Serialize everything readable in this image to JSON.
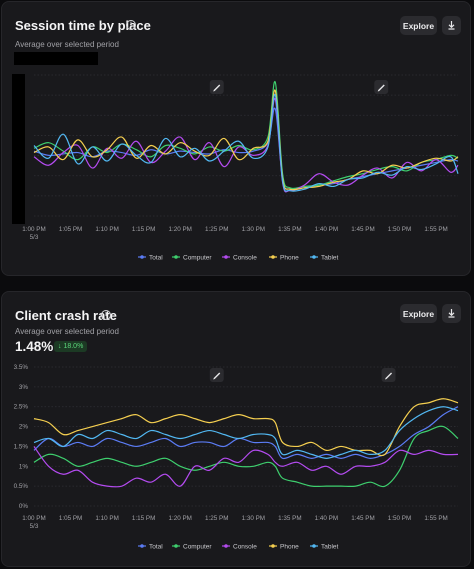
{
  "colors": {
    "Total": "#5b7cf5",
    "Computer": "#3ecf6e",
    "Console": "#b44bf0",
    "Phone": "#f5cf50",
    "Tablet": "#52b8f2"
  },
  "session": {
    "title": "Session time by place",
    "subtitle": "Average over selected period",
    "explore_label": "Explore",
    "info_icon": "info-icon",
    "download_icon": "download-icon",
    "marker_icon": "pencil-icon"
  },
  "crash": {
    "title": "Client crash rate",
    "subtitle": "Average over selected period",
    "value": "1.48%",
    "change": "18.0%",
    "explore_label": "Explore",
    "info_icon": "info-icon",
    "download_icon": "download-icon",
    "marker_icon": "pencil-icon"
  },
  "chart_data": [
    {
      "type": "line",
      "title": "Session time by place",
      "y_ticks_visible": false,
      "x_ticks": [
        "1:00 PM\n5/3",
        "1:05 PM",
        "1:10 PM",
        "1:15 PM",
        "1:20 PM",
        "1:25 PM",
        "1:30 PM",
        "1:35 PM",
        "1:40 PM",
        "1:45 PM",
        "1:50 PM",
        "1:55 PM"
      ],
      "x_minutes": [
        0,
        5,
        10,
        15,
        20,
        25,
        30,
        35,
        40,
        45,
        50,
        55
      ],
      "ylim": [
        0,
        10
      ],
      "grid": true,
      "legend": "bottom",
      "annotations_at_minutes": [
        25,
        47.5
      ],
      "series": [
        {
          "name": "Total",
          "x": [
            0,
            2,
            4,
            6,
            8,
            10,
            12,
            14,
            16,
            18,
            20,
            22,
            24,
            26,
            28,
            30,
            32,
            33,
            34,
            35,
            37,
            39,
            41,
            43,
            45,
            47,
            49,
            51,
            53,
            55,
            57,
            58
          ],
          "y": [
            4.6,
            4.3,
            4.4,
            4.5,
            4.2,
            4.6,
            4.5,
            4.3,
            4.7,
            4.4,
            4.6,
            4.5,
            4.4,
            4.7,
            4.5,
            4.6,
            5.2,
            7.6,
            2.6,
            1.9,
            2.0,
            2.2,
            2.3,
            2.6,
            2.8,
            3.0,
            3.2,
            3.4,
            3.6,
            3.8,
            4.0,
            3.9
          ]
        },
        {
          "name": "Computer",
          "x": [
            0,
            2,
            4,
            6,
            8,
            10,
            12,
            14,
            16,
            18,
            20,
            22,
            24,
            26,
            28,
            30,
            32,
            33,
            34,
            35,
            37,
            39,
            41,
            43,
            45,
            47,
            49,
            51,
            53,
            55,
            57,
            58
          ],
          "y": [
            4.8,
            5.2,
            4.6,
            4.0,
            4.9,
            4.5,
            5.1,
            4.7,
            4.2,
            5.0,
            4.8,
            4.4,
            4.9,
            4.6,
            5.0,
            4.7,
            5.6,
            9.5,
            3.0,
            2.0,
            2.1,
            2.2,
            2.5,
            2.8,
            3.0,
            3.3,
            3.5,
            3.2,
            3.8,
            4.0,
            4.3,
            4.1
          ]
        },
        {
          "name": "Console",
          "x": [
            0,
            2,
            4,
            6,
            8,
            10,
            12,
            14,
            16,
            18,
            20,
            22,
            24,
            26,
            28,
            30,
            32,
            33,
            34,
            35,
            37,
            39,
            41,
            43,
            45,
            47,
            49,
            51,
            53,
            55,
            57,
            58
          ],
          "y": [
            4.2,
            3.6,
            4.5,
            5.0,
            3.4,
            4.8,
            4.1,
            5.3,
            3.8,
            4.6,
            5.6,
            4.0,
            5.2,
            3.5,
            4.9,
            4.3,
            5.0,
            8.3,
            2.4,
            1.8,
            2.2,
            3.0,
            2.4,
            2.2,
            2.9,
            3.4,
            2.7,
            3.8,
            3.2,
            4.0,
            3.1,
            3.6
          ]
        },
        {
          "name": "Phone",
          "x": [
            0,
            2,
            4,
            6,
            8,
            10,
            12,
            14,
            16,
            18,
            20,
            22,
            24,
            26,
            28,
            30,
            32,
            33,
            34,
            35,
            37,
            39,
            41,
            43,
            45,
            47,
            49,
            51,
            53,
            55,
            57,
            58
          ],
          "y": [
            4.5,
            4.9,
            4.0,
            5.4,
            4.2,
            4.7,
            5.6,
            4.1,
            5.0,
            4.4,
            5.2,
            4.6,
            4.3,
            5.5,
            4.0,
            4.8,
            5.3,
            8.9,
            2.7,
            1.9,
            2.0,
            2.1,
            2.4,
            2.6,
            3.2,
            3.0,
            3.6,
            3.4,
            3.8,
            4.1,
            3.9,
            4.2
          ]
        },
        {
          "name": "Tablet",
          "x": [
            0,
            2,
            4,
            6,
            8,
            10,
            12,
            14,
            16,
            18,
            20,
            22,
            24,
            26,
            28,
            30,
            32,
            33,
            34,
            35,
            37,
            39,
            41,
            43,
            45,
            47,
            49,
            51,
            53,
            55,
            57,
            58
          ],
          "y": [
            5.0,
            4.1,
            5.8,
            3.7,
            4.9,
            3.9,
            5.1,
            4.3,
            3.8,
            5.5,
            4.2,
            4.8,
            3.9,
            4.6,
            5.3,
            4.1,
            4.9,
            8.6,
            2.5,
            1.8,
            1.9,
            2.3,
            2.1,
            2.6,
            2.7,
            3.1,
            2.9,
            3.5,
            3.3,
            3.7,
            4.2,
            3.0
          ]
        }
      ]
    },
    {
      "type": "line",
      "title": "Client crash rate",
      "ylabel": "",
      "y_ticks": [
        "0%",
        "0.5%",
        "1%",
        "1.5%",
        "2%",
        "2.5%",
        "3%",
        "3.5%"
      ],
      "ylim": [
        0,
        3.5
      ],
      "x_ticks": [
        "1:00 PM\n5/3",
        "1:05 PM",
        "1:10 PM",
        "1:15 PM",
        "1:20 PM",
        "1:25 PM",
        "1:30 PM",
        "1:35 PM",
        "1:40 PM",
        "1:45 PM",
        "1:50 PM",
        "1:55 PM"
      ],
      "x_minutes": [
        0,
        5,
        10,
        15,
        20,
        25,
        30,
        35,
        40,
        45,
        50,
        55
      ],
      "grid": true,
      "legend": "bottom",
      "annotations_at_minutes": [
        25,
        48.5
      ],
      "series": [
        {
          "name": "Total",
          "x": [
            0,
            2,
            4,
            6,
            8,
            10,
            12,
            14,
            16,
            18,
            20,
            22,
            24,
            26,
            28,
            30,
            32,
            33,
            34,
            36,
            38,
            40,
            42,
            44,
            46,
            48,
            50,
            52,
            54,
            56,
            58
          ],
          "y": [
            1.4,
            1.7,
            1.5,
            1.6,
            1.5,
            1.7,
            1.6,
            1.5,
            1.6,
            1.7,
            1.5,
            1.6,
            1.6,
            1.5,
            1.7,
            1.6,
            1.6,
            1.5,
            1.2,
            1.3,
            1.2,
            1.3,
            1.2,
            1.3,
            1.2,
            1.3,
            1.5,
            1.8,
            2.0,
            2.3,
            2.5
          ]
        },
        {
          "name": "Computer",
          "x": [
            0,
            2,
            4,
            6,
            8,
            10,
            12,
            14,
            16,
            18,
            20,
            22,
            24,
            26,
            28,
            30,
            32,
            33,
            34,
            36,
            38,
            40,
            42,
            44,
            46,
            48,
            50,
            52,
            54,
            56,
            58
          ],
          "y": [
            1.1,
            1.3,
            1.2,
            1.0,
            1.1,
            1.2,
            1.1,
            1.0,
            1.1,
            1.2,
            1.0,
            0.9,
            1.0,
            1.1,
            1.0,
            1.0,
            1.1,
            1.0,
            0.7,
            0.6,
            0.5,
            0.5,
            0.5,
            0.5,
            0.6,
            0.5,
            0.9,
            1.7,
            1.9,
            2.0,
            1.7
          ]
        },
        {
          "name": "Console",
          "x": [
            0,
            2,
            4,
            6,
            8,
            10,
            12,
            14,
            16,
            18,
            20,
            22,
            24,
            26,
            28,
            30,
            32,
            33,
            34,
            36,
            38,
            40,
            42,
            44,
            46,
            48,
            50,
            52,
            54,
            56,
            58
          ],
          "y": [
            1.5,
            1.0,
            0.8,
            0.9,
            0.6,
            0.5,
            0.5,
            0.7,
            0.6,
            0.8,
            0.5,
            1.0,
            0.9,
            1.2,
            1.1,
            1.4,
            1.3,
            1.1,
            1.0,
            1.1,
            0.9,
            1.0,
            0.8,
            1.0,
            1.0,
            1.1,
            1.4,
            1.3,
            1.4,
            1.3,
            1.3
          ]
        },
        {
          "name": "Phone",
          "x": [
            0,
            2,
            4,
            6,
            8,
            10,
            12,
            14,
            16,
            18,
            20,
            22,
            24,
            26,
            28,
            30,
            32,
            33,
            34,
            36,
            38,
            40,
            42,
            44,
            46,
            48,
            50,
            52,
            54,
            56,
            58
          ],
          "y": [
            2.2,
            2.1,
            1.8,
            1.9,
            2.0,
            2.1,
            2.2,
            2.3,
            2.1,
            2.2,
            2.3,
            2.2,
            2.1,
            2.2,
            2.3,
            2.2,
            2.2,
            2.1,
            1.6,
            1.5,
            1.6,
            1.4,
            1.5,
            1.4,
            1.4,
            1.3,
            2.0,
            2.5,
            2.6,
            2.7,
            2.6
          ]
        },
        {
          "name": "Tablet",
          "x": [
            0,
            2,
            4,
            6,
            8,
            10,
            12,
            14,
            16,
            18,
            20,
            22,
            24,
            26,
            28,
            30,
            32,
            33,
            34,
            36,
            38,
            40,
            42,
            44,
            46,
            48,
            50,
            52,
            54,
            56,
            58
          ],
          "y": [
            1.6,
            1.7,
            1.5,
            1.8,
            1.7,
            1.9,
            1.8,
            1.7,
            1.9,
            1.8,
            1.7,
            1.8,
            1.9,
            1.8,
            1.7,
            1.8,
            1.8,
            1.7,
            1.3,
            1.4,
            1.3,
            1.2,
            1.3,
            1.4,
            1.3,
            1.4,
            1.9,
            2.2,
            2.4,
            2.5,
            2.4
          ]
        }
      ]
    }
  ]
}
